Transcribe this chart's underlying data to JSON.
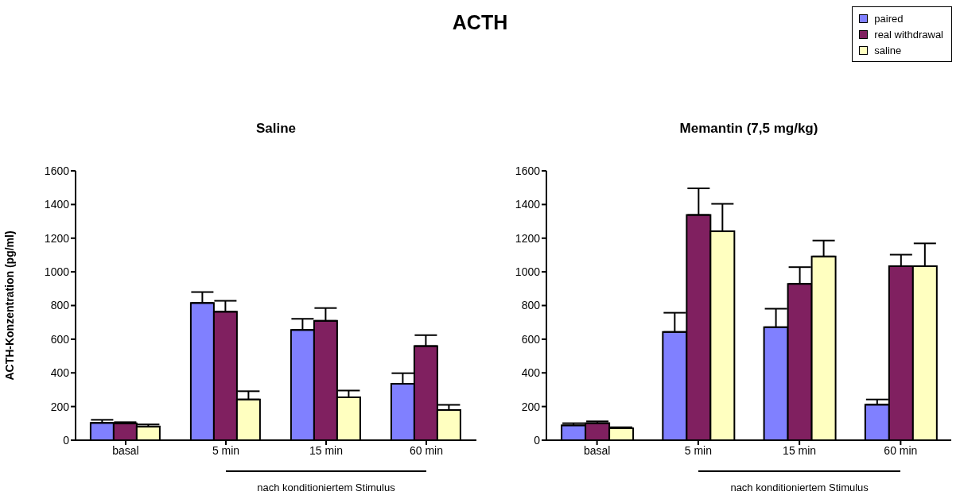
{
  "chart_data": [
    {
      "type": "bar",
      "title": "Saline",
      "ylabel": "ACTH-Konzentration (pg/ml)",
      "categories": [
        "basal",
        "5 min",
        "15 min",
        "60 min"
      ],
      "ylim": [
        0,
        1600
      ],
      "yticks": [
        0,
        200,
        400,
        600,
        800,
        1000,
        1200,
        1400,
        1600
      ],
      "grid": false,
      "legend": false,
      "annotations": [
        "ACTH",
        "nach konditioniertem Stimulus"
      ],
      "series": [
        {
          "color": "#8080ff",
          "values": [
            103,
            815,
            655,
            335
          ],
          "errors": [
            [
              103,
              121
            ],
            [
              815,
              880
            ],
            [
              655,
              721
            ],
            [
              335,
              398
            ]
          ]
        },
        {
          "color": "#802060",
          "values": [
            100,
            763,
            709,
            559
          ],
          "errors": [
            [
              100,
              107
            ],
            [
              763,
              828
            ],
            [
              709,
              785
            ],
            [
              559,
              624
            ]
          ]
        },
        {
          "color": "#ffffc0",
          "values": [
            81,
            242,
            255,
            179
          ],
          "errors": [
            [
              81,
              94
            ],
            [
              242,
              291
            ],
            [
              255,
              295
            ],
            [
              179,
              210
            ]
          ]
        }
      ]
    },
    {
      "type": "bar",
      "title": "Memantin (7,5 mg/kg)",
      "categories": [
        "basal",
        "5 min",
        "15 min",
        "60 min"
      ],
      "ylim": [
        0,
        1600
      ],
      "yticks": [
        0,
        200,
        400,
        600,
        800,
        1000,
        1200,
        1400,
        1600
      ],
      "grid": false,
      "legend": "top right",
      "annotations": [
        "nach konditioniertem Stimulus"
      ],
      "series": [
        {
          "name": "paired",
          "color": "#8080ff",
          "values": [
            88,
            643,
            671,
            211
          ],
          "errors": [
            [
              88,
              101
            ],
            [
              643,
              757
            ],
            [
              671,
              781
            ],
            [
              211,
              242
            ]
          ]
        },
        {
          "name": "real withdrawal",
          "color": "#802060",
          "values": [
            101,
            1338,
            929,
            1034
          ],
          "errors": [
            [
              101,
              112
            ],
            [
              1338,
              1496
            ],
            [
              929,
              1028
            ],
            [
              1034,
              1102
            ]
          ]
        },
        {
          "name": "saline",
          "color": "#ffffc0",
          "values": [
            71,
            1241,
            1091,
            1034
          ],
          "errors": [
            [
              71,
              77
            ],
            [
              1241,
              1404
            ],
            [
              1091,
              1186
            ],
            [
              1034,
              1169
            ]
          ]
        }
      ]
    }
  ]
}
